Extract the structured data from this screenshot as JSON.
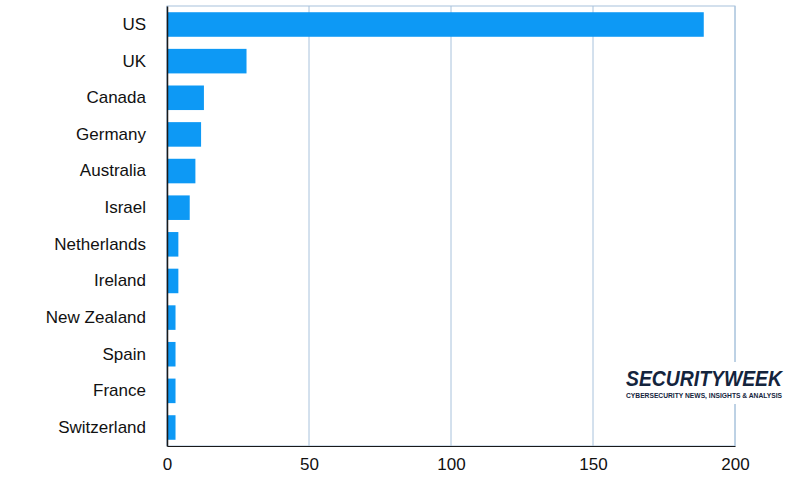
{
  "chart_data": {
    "type": "bar",
    "orientation": "horizontal",
    "categories": [
      "US",
      "UK",
      "Canada",
      "Germany",
      "Australia",
      "Israel",
      "Netherlands",
      "Ireland",
      "New Zealand",
      "Spain",
      "France",
      "Switzerland"
    ],
    "values": [
      189,
      28,
      13,
      12,
      10,
      8,
      4,
      4,
      3,
      3,
      3,
      3
    ],
    "color": "#0d99f5",
    "xlim": [
      0,
      200
    ],
    "xticks": [
      0,
      50,
      100,
      150,
      200
    ],
    "grid": true,
    "annotations": [
      "SECURITYWEEK",
      "CYBERSECURITY NEWS, INSIGHTS & ANALYSIS"
    ]
  }
}
